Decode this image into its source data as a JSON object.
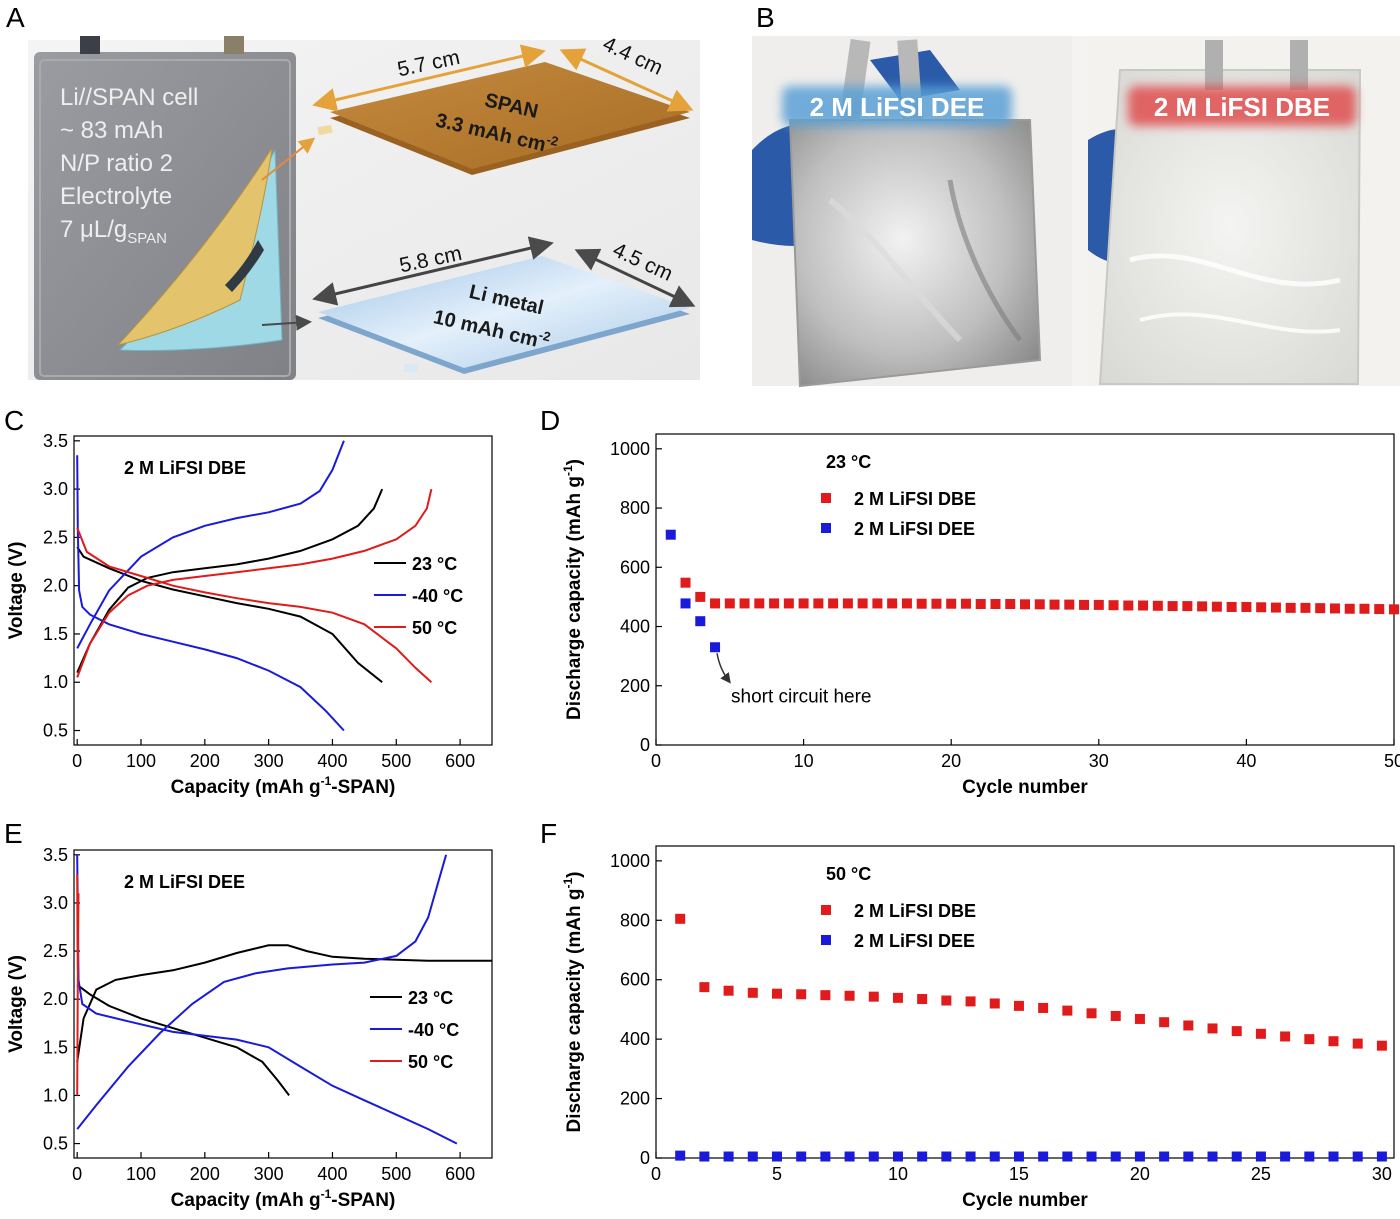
{
  "panels": {
    "A": {
      "letter": "A",
      "cell_text": [
        "Li//SPAN cell",
        "~ 83 mAh",
        "N/P ratio 2",
        "Electrolyte",
        "7 μL/g"
      ],
      "cell_text_sub": "SPAN",
      "span_label": "SPAN",
      "span_capacity": "3.3 mAh cm",
      "span_capacity_sup": "-2",
      "span_width": "5.7 cm",
      "span_depth": "4.4 cm",
      "li_label": "Li metal",
      "li_capacity": "10 mAh cm",
      "li_capacity_sup": "-2",
      "li_width": "5.8 cm",
      "li_depth": "4.5 cm",
      "colors": {
        "span": "#b77b2f",
        "li": "#bcd6ee",
        "cell": "#8f9196",
        "yellow": "#e5c46a",
        "cyan": "#9fd9e6"
      }
    },
    "B": {
      "letter": "B",
      "left_label": "2 M LiFSI DEE",
      "right_label": "2 M LiFSI DBE",
      "colors": {
        "left_glow": "#5aa0d6",
        "right_glow": "#e05050",
        "glove": "#2a5aa8"
      }
    }
  },
  "chart_data": [
    {
      "panel": "C",
      "type": "line",
      "annotation": "2 M LiFSI DBE",
      "xlabel": "Capacity (mAh g",
      "xlabel_sup": "-1",
      "xlabel_tail": "-SPAN)",
      "ylabel": "Voltage (V)",
      "xlim": [
        -5,
        650
      ],
      "ylim": [
        0.35,
        3.55
      ],
      "xticks": [
        0,
        100,
        200,
        300,
        400,
        500,
        600
      ],
      "yticks": [
        0.5,
        1.0,
        1.5,
        2.0,
        2.5,
        3.0,
        3.5
      ],
      "yticklabels": [
        "0.5",
        "1.0",
        "1.5",
        "2.0",
        "2.5",
        "3.0",
        "3.5"
      ],
      "legend": [
        "23 °C",
        "-40 °C",
        "50 °C"
      ],
      "series": [
        {
          "name": "23 °C",
          "color": "#000000",
          "segments": [
            [
              [
                0,
                2.4
              ],
              [
                10,
                2.3
              ],
              [
                50,
                2.18
              ],
              [
                100,
                2.05
              ],
              [
                150,
                1.96
              ],
              [
                200,
                1.89
              ],
              [
                250,
                1.82
              ],
              [
                300,
                1.76
              ],
              [
                350,
                1.68
              ],
              [
                400,
                1.5
              ],
              [
                440,
                1.2
              ],
              [
                478,
                1.0
              ]
            ],
            [
              [
                0,
                1.1
              ],
              [
                20,
                1.4
              ],
              [
                50,
                1.75
              ],
              [
                80,
                1.98
              ],
              [
                110,
                2.08
              ],
              [
                150,
                2.14
              ],
              [
                200,
                2.18
              ],
              [
                250,
                2.22
              ],
              [
                300,
                2.28
              ],
              [
                350,
                2.36
              ],
              [
                400,
                2.48
              ],
              [
                440,
                2.62
              ],
              [
                465,
                2.8
              ],
              [
                478,
                3.0
              ]
            ]
          ]
        },
        {
          "name": "-40 °C",
          "color": "#1a1adb",
          "segments": [
            [
              [
                0,
                3.35
              ],
              [
                1,
                2.6
              ],
              [
                3,
                1.95
              ],
              [
                8,
                1.78
              ],
              [
                20,
                1.7
              ],
              [
                50,
                1.6
              ],
              [
                100,
                1.5
              ],
              [
                150,
                1.42
              ],
              [
                200,
                1.34
              ],
              [
                250,
                1.25
              ],
              [
                300,
                1.12
              ],
              [
                350,
                0.95
              ],
              [
                390,
                0.7
              ],
              [
                418,
                0.5
              ]
            ],
            [
              [
                0,
                1.35
              ],
              [
                20,
                1.6
              ],
              [
                50,
                1.95
              ],
              [
                100,
                2.3
              ],
              [
                150,
                2.5
              ],
              [
                200,
                2.62
              ],
              [
                250,
                2.7
              ],
              [
                300,
                2.76
              ],
              [
                350,
                2.85
              ],
              [
                380,
                2.98
              ],
              [
                400,
                3.2
              ],
              [
                418,
                3.5
              ]
            ]
          ]
        },
        {
          "name": "50 °C",
          "color": "#e01b1b",
          "segments": [
            [
              [
                0,
                2.6
              ],
              [
                15,
                2.35
              ],
              [
                50,
                2.2
              ],
              [
                100,
                2.1
              ],
              [
                150,
                2.0
              ],
              [
                200,
                1.93
              ],
              [
                250,
                1.87
              ],
              [
                300,
                1.82
              ],
              [
                350,
                1.78
              ],
              [
                400,
                1.72
              ],
              [
                450,
                1.6
              ],
              [
                500,
                1.35
              ],
              [
                530,
                1.15
              ],
              [
                555,
                1.0
              ]
            ],
            [
              [
                0,
                1.05
              ],
              [
                20,
                1.4
              ],
              [
                50,
                1.72
              ],
              [
                80,
                1.9
              ],
              [
                110,
                2.0
              ],
              [
                150,
                2.06
              ],
              [
                200,
                2.1
              ],
              [
                250,
                2.14
              ],
              [
                300,
                2.18
              ],
              [
                350,
                2.22
              ],
              [
                400,
                2.28
              ],
              [
                450,
                2.36
              ],
              [
                500,
                2.48
              ],
              [
                530,
                2.62
              ],
              [
                548,
                2.8
              ],
              [
                555,
                3.0
              ]
            ]
          ]
        }
      ]
    },
    {
      "panel": "D",
      "type": "scatter",
      "annotation": "23 °C",
      "xlabel": "Cycle number",
      "ylabel": "Discharge capacity (mAh g",
      "ylabel_sup": "-1",
      "ylabel_tail": ")",
      "xlim": [
        0,
        50
      ],
      "ylim": [
        0,
        1050
      ],
      "xticks": [
        0,
        10,
        20,
        30,
        40,
        50
      ],
      "yticks": [
        0,
        200,
        400,
        600,
        800,
        1000
      ],
      "legend": [
        "2 M LiFSI DBE",
        "2 M LiFSI DEE"
      ],
      "note": "short circuit here",
      "series": [
        {
          "name": "2 M LiFSI DBE",
          "color": "#e01b1b",
          "x": [
            2,
            3,
            4,
            5,
            6,
            7,
            8,
            9,
            10,
            11,
            12,
            13,
            14,
            15,
            16,
            17,
            18,
            19,
            20,
            21,
            22,
            23,
            24,
            25,
            26,
            27,
            28,
            29,
            30,
            31,
            32,
            33,
            34,
            35,
            36,
            37,
            38,
            39,
            40,
            41,
            42,
            43,
            44,
            45,
            46,
            47,
            48,
            49,
            50
          ],
          "y": [
            548,
            500,
            478,
            478,
            478,
            478,
            478,
            478,
            478,
            478,
            478,
            478,
            478,
            478,
            478,
            478,
            477,
            477,
            477,
            477,
            476,
            476,
            476,
            475,
            475,
            474,
            474,
            473,
            473,
            472,
            471,
            471,
            470,
            469,
            469,
            468,
            467,
            466,
            466,
            465,
            464,
            463,
            463,
            462,
            461,
            460,
            460,
            459,
            458
          ]
        },
        {
          "name": "2 M LiFSI DEE",
          "color": "#1a1adb",
          "x": [
            1,
            2,
            3,
            4
          ],
          "y": [
            710,
            478,
            418,
            330
          ]
        }
      ]
    },
    {
      "panel": "E",
      "type": "line",
      "annotation": "2 M LiFSI DEE",
      "xlabel": "Capacity (mAh g",
      "xlabel_sup": "-1",
      "xlabel_tail": "-SPAN)",
      "ylabel": "Voltage (V)",
      "xlim": [
        -5,
        650
      ],
      "ylim": [
        0.35,
        3.55
      ],
      "xticks": [
        0,
        100,
        200,
        300,
        400,
        500,
        600
      ],
      "yticks": [
        0.5,
        1.0,
        1.5,
        2.0,
        2.5,
        3.0,
        3.5
      ],
      "yticklabels": [
        "0.5",
        "1.0",
        "1.5",
        "2.0",
        "2.5",
        "3.0",
        "3.5"
      ],
      "legend": [
        "23 °C",
        "-40 °C",
        "50 °C"
      ],
      "series": [
        {
          "name": "23 °C",
          "color": "#000000",
          "segments": [
            [
              [
                0,
                2.15
              ],
              [
                20,
                2.05
              ],
              [
                50,
                1.93
              ],
              [
                100,
                1.8
              ],
              [
                150,
                1.7
              ],
              [
                200,
                1.6
              ],
              [
                250,
                1.5
              ],
              [
                290,
                1.35
              ],
              [
                315,
                1.15
              ],
              [
                332,
                1.0
              ]
            ],
            [
              [
                0,
                1.35
              ],
              [
                10,
                1.8
              ],
              [
                30,
                2.1
              ],
              [
                60,
                2.2
              ],
              [
                100,
                2.25
              ],
              [
                150,
                2.3
              ],
              [
                200,
                2.38
              ],
              [
                250,
                2.48
              ],
              [
                300,
                2.56
              ],
              [
                330,
                2.56
              ],
              [
                360,
                2.5
              ],
              [
                400,
                2.44
              ],
              [
                450,
                2.42
              ],
              [
                500,
                2.41
              ],
              [
                550,
                2.4
              ],
              [
                600,
                2.4
              ],
              [
                650,
                2.4
              ]
            ]
          ]
        },
        {
          "name": "-40 °C",
          "color": "#1a1adb",
          "segments": [
            [
              [
                0,
                3.5
              ],
              [
                2,
                2.2
              ],
              [
                8,
                1.95
              ],
              [
                30,
                1.85
              ],
              [
                80,
                1.77
              ],
              [
                150,
                1.66
              ],
              [
                200,
                1.62
              ],
              [
                250,
                1.58
              ],
              [
                300,
                1.5
              ],
              [
                350,
                1.3
              ],
              [
                400,
                1.1
              ],
              [
                450,
                0.95
              ],
              [
                500,
                0.8
              ],
              [
                550,
                0.65
              ],
              [
                595,
                0.5
              ]
            ],
            [
              [
                0,
                0.65
              ],
              [
                30,
                0.9
              ],
              [
                80,
                1.3
              ],
              [
                130,
                1.65
              ],
              [
                180,
                1.95
              ],
              [
                230,
                2.18
              ],
              [
                280,
                2.27
              ],
              [
                330,
                2.32
              ],
              [
                400,
                2.36
              ],
              [
                450,
                2.38
              ],
              [
                500,
                2.45
              ],
              [
                530,
                2.6
              ],
              [
                550,
                2.85
              ],
              [
                565,
                3.2
              ],
              [
                578,
                3.5
              ]
            ]
          ]
        },
        {
          "name": "50 °C",
          "color": "#e01b1b",
          "segments": [
            [
              [
                0,
                3.3
              ],
              [
                0.5,
                2.6
              ],
              [
                1,
                2.3
              ]
            ],
            [
              [
                0,
                1.0
              ],
              [
                0.5,
                1.6
              ],
              [
                1,
                2.2
              ],
              [
                2,
                3.1
              ]
            ]
          ]
        }
      ]
    },
    {
      "panel": "F",
      "type": "scatter",
      "annotation": "50 °C",
      "xlabel": "Cycle number",
      "ylabel": "Discharge capacity (mAh g",
      "ylabel_sup": "-1",
      "ylabel_tail": ")",
      "xlim": [
        0,
        30.5
      ],
      "ylim": [
        0,
        1050
      ],
      "xticks": [
        0,
        5,
        10,
        15,
        20,
        25,
        30
      ],
      "yticks": [
        0,
        200,
        400,
        600,
        800,
        1000
      ],
      "legend": [
        "2 M LiFSI DBE",
        "2 M LiFSI DEE"
      ],
      "series": [
        {
          "name": "2 M LiFSI DBE",
          "color": "#e01b1b",
          "x": [
            1,
            2,
            3,
            4,
            5,
            6,
            7,
            8,
            9,
            10,
            11,
            12,
            13,
            14,
            15,
            16,
            17,
            18,
            19,
            20,
            21,
            22,
            23,
            24,
            25,
            26,
            27,
            28,
            29,
            30
          ],
          "y": [
            805,
            575,
            563,
            556,
            553,
            551,
            548,
            546,
            543,
            539,
            535,
            530,
            527,
            520,
            512,
            505,
            496,
            487,
            478,
            468,
            457,
            446,
            436,
            427,
            418,
            409,
            400,
            393,
            385,
            378
          ]
        },
        {
          "name": "2 M LiFSI DEE",
          "color": "#1a1adb",
          "x": [
            1,
            2,
            3,
            4,
            5,
            6,
            7,
            8,
            9,
            10,
            11,
            12,
            13,
            14,
            15,
            16,
            17,
            18,
            19,
            20,
            21,
            22,
            23,
            24,
            25,
            26,
            27,
            28,
            29,
            30
          ],
          "y": [
            8,
            5,
            5,
            5,
            5,
            5,
            5,
            5,
            5,
            5,
            5,
            5,
            5,
            5,
            5,
            5,
            5,
            5,
            5,
            5,
            5,
            5,
            5,
            5,
            5,
            5,
            5,
            5,
            5,
            5
          ]
        }
      ]
    }
  ]
}
